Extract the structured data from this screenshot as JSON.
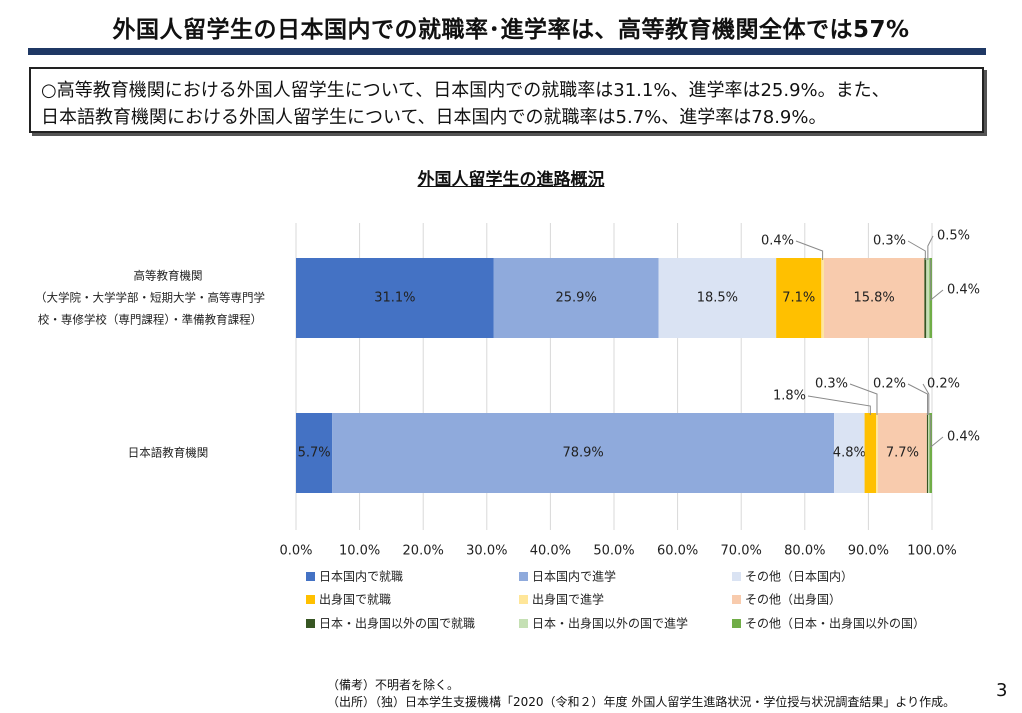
{
  "header": {
    "title": "外国人留学生の日本国内での就職率･進学率は、高等教育機関全体では57%",
    "summary_line1": "○高等教育機関における外国人留学生について、日本国内での就職率は31.1%、進学率は25.9%。また、",
    "summary_line2": "日本語教育機関における外国人留学生について、日本国内での就職率は5.7%、進学率は78.9%。"
  },
  "chart_data": {
    "type": "bar",
    "orientation": "horizontal",
    "stacked": true,
    "title": "外国人留学生の進路概況",
    "categories": [
      [
        "高等教育機関",
        "（大学院・大学学部・短期大学・高等専門学",
        "校・専修学校（専門課程）・準備教育課程）"
      ],
      [
        "日本語教育機関"
      ]
    ],
    "series": [
      {
        "name": "日本国内で就職",
        "color": "#4472c4",
        "values": [
          31.1,
          5.7
        ]
      },
      {
        "name": "日本国内で進学",
        "color": "#8faadc",
        "values": [
          25.9,
          78.9
        ]
      },
      {
        "name": "その他（日本国内）",
        "color": "#dae3f3",
        "values": [
          18.5,
          4.8
        ]
      },
      {
        "name": "出身国で就職",
        "color": "#ffc000",
        "values": [
          7.1,
          1.8
        ]
      },
      {
        "name": "出身国で進学",
        "color": "#ffe699",
        "values": [
          0.4,
          0.3
        ]
      },
      {
        "name": "その他（出身国）",
        "color": "#f8cbad",
        "values": [
          15.8,
          7.7
        ]
      },
      {
        "name": "日本・出身国以外の国で就職",
        "color": "#375623",
        "values": [
          0.3,
          0.2
        ]
      },
      {
        "name": "日本・出身国以外の国で進学",
        "color": "#c5e0b4",
        "values": [
          0.5,
          0.2
        ]
      },
      {
        "name": "その他（日本・出身国以外の国）",
        "color": "#70ad47",
        "values": [
          0.4,
          0.4
        ]
      }
    ],
    "data_labels": [
      [
        "31.1%",
        "25.9%",
        "18.5%",
        "7.1%",
        "0.4%",
        "15.8%",
        "0.3%",
        "0.5%",
        "0.4%"
      ],
      [
        "5.7%",
        "78.9%",
        "4.8%",
        "1.8%",
        "0.3%",
        "7.7%",
        "0.2%",
        "0.2%",
        "0.4%"
      ]
    ],
    "xlim": [
      0,
      100
    ],
    "x_ticks": [
      "0.0%",
      "10.0%",
      "20.0%",
      "30.0%",
      "40.0%",
      "50.0%",
      "60.0%",
      "70.0%",
      "80.0%",
      "90.0%",
      "100.0%"
    ],
    "grid": true,
    "legend_position": "bottom"
  },
  "footer": {
    "note1": "（備考）不明者を除く。",
    "note2": "（出所）（独）日本学生支援機構「2020（令和２）年度 外国人留学生進路状況・学位授与状況調査結果」より作成。",
    "page_number": "3"
  }
}
